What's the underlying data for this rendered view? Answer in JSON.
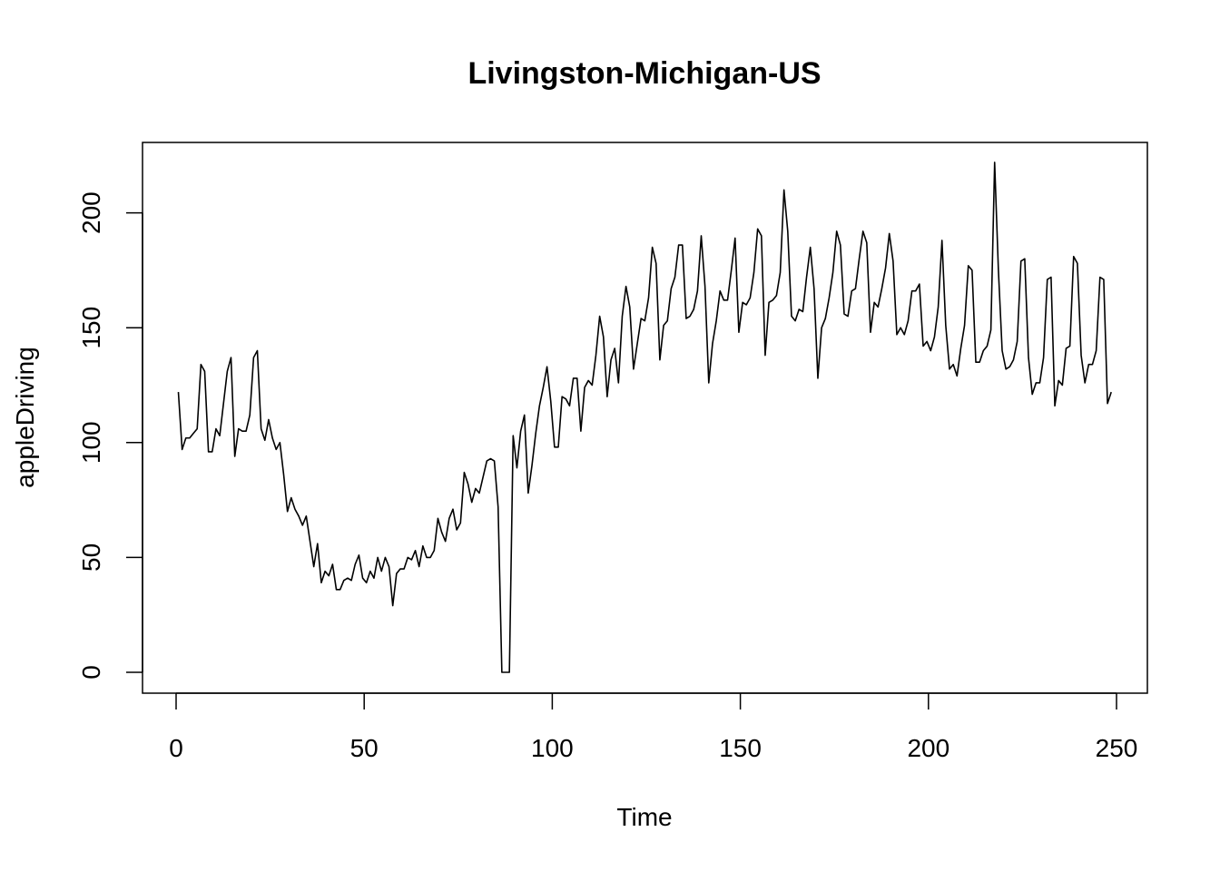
{
  "chart_data": {
    "type": "line",
    "title": "Livingston-Michigan-US",
    "xlabel": "Time",
    "ylabel": "appleDriving",
    "xlim": [
      1,
      248
    ],
    "ylim": [
      0,
      222
    ],
    "x_ticks": [
      0,
      50,
      100,
      150,
      200,
      250
    ],
    "y_ticks": [
      0,
      50,
      100,
      150,
      200
    ],
    "grid": false,
    "legend": "none",
    "line_color": "#000000",
    "series": [
      {
        "x_start": 1,
        "x_step": 1,
        "values": [
          122,
          97,
          102,
          102,
          104,
          106,
          134,
          131,
          96,
          96,
          106,
          103,
          117,
          131,
          137,
          94,
          106,
          105,
          105,
          112,
          137,
          140,
          106,
          101,
          110,
          102,
          97,
          100,
          86,
          70,
          76,
          71,
          68,
          64,
          68,
          57,
          46,
          56,
          39,
          44,
          42,
          47,
          36,
          36,
          40,
          41,
          40,
          47,
          51,
          41,
          39,
          44,
          41,
          50,
          44,
          50,
          46,
          29,
          43,
          45,
          45,
          50,
          49,
          53,
          46,
          55,
          50,
          50,
          53,
          67,
          61,
          57,
          67,
          71,
          62,
          65,
          87,
          82,
          74,
          80,
          78,
          85,
          92,
          93,
          92,
          72,
          0,
          0,
          0,
          103,
          89,
          105,
          112,
          78,
          90,
          104,
          116,
          124,
          133,
          118,
          98,
          98,
          120,
          119,
          116,
          128,
          128,
          105,
          124,
          127,
          125,
          138,
          155,
          146,
          120,
          136,
          141,
          126,
          155,
          168,
          159,
          132,
          143,
          154,
          153,
          163,
          185,
          178,
          136,
          151,
          153,
          167,
          172,
          186,
          186,
          154,
          155,
          158,
          166,
          190,
          168,
          126,
          143,
          153,
          166,
          162,
          162,
          175,
          189,
          148,
          161,
          160,
          163,
          174,
          193,
          190,
          138,
          161,
          162,
          164,
          174,
          210,
          192,
          155,
          153,
          158,
          157,
          172,
          185,
          167,
          128,
          150,
          154,
          163,
          174,
          192,
          186,
          156,
          155,
          166,
          167,
          180,
          192,
          187,
          148,
          161,
          159,
          167,
          176,
          191,
          179,
          147,
          150,
          147,
          153,
          166,
          166,
          169,
          142,
          144,
          140,
          146,
          159,
          188,
          151,
          132,
          134,
          129,
          141,
          151,
          177,
          175,
          135,
          135,
          140,
          142,
          149,
          222,
          175,
          140,
          132,
          133,
          136,
          144,
          179,
          180,
          137,
          121,
          126,
          126,
          137,
          171,
          172,
          116,
          127,
          125,
          141,
          142,
          181,
          178,
          138,
          126,
          134,
          134,
          140,
          172,
          171,
          117,
          122
        ]
      }
    ]
  }
}
